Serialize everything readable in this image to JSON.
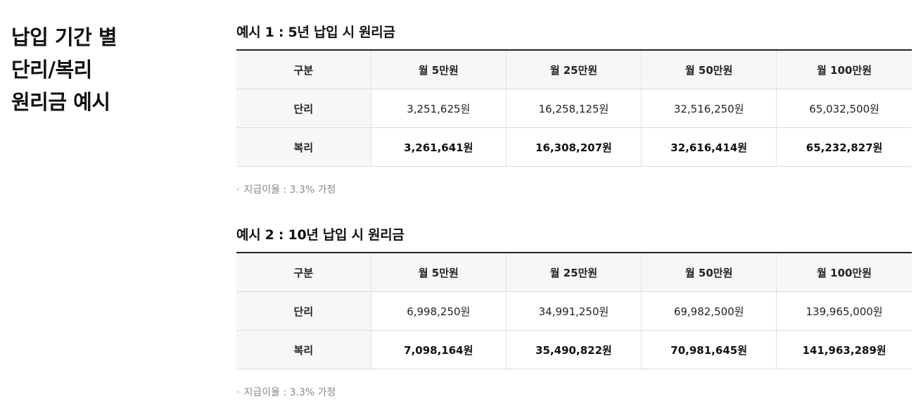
{
  "heading": {
    "line1": "납입 기간 별",
    "line2": "단리/복리",
    "line3": "원리금 예시"
  },
  "examples": [
    {
      "title": "예시 1 : 5년 납입 시 원리금",
      "columns": [
        "구분",
        "월 5만원",
        "월 25만원",
        "월 50만원",
        "월 100만원"
      ],
      "rows": [
        {
          "label": "단리",
          "values": [
            "3,251,625원",
            "16,258,125원",
            "32,516,250원",
            "65,032,500원"
          ]
        },
        {
          "label": "복리",
          "values": [
            "3,261,641원",
            "16,308,207원",
            "32,616,414원",
            "65,232,827원"
          ]
        }
      ],
      "note": "지급이율 : 3.3% 가정"
    },
    {
      "title": "예시 2 : 10년 납입 시 원리금",
      "columns": [
        "구분",
        "월 5만원",
        "월 25만원",
        "월 50만원",
        "월 100만원"
      ],
      "rows": [
        {
          "label": "단리",
          "values": [
            "6,998,250원",
            "34,991,250원",
            "69,982,500원",
            "139,965,000원"
          ]
        },
        {
          "label": "복리",
          "values": [
            "7,098,164원",
            "35,490,822원",
            "70,981,645원",
            "141,963,289원"
          ]
        }
      ],
      "note": "지급이율 : 3.3% 가정"
    }
  ],
  "note_bullet": "·"
}
